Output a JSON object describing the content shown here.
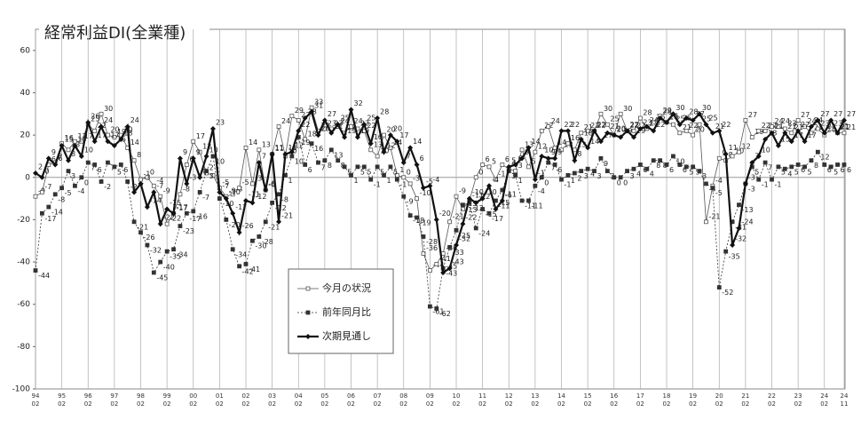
{
  "chart_data": {
    "type": "line",
    "title": "経常利益DI(全業種)",
    "categories": [
      "94\n02",
      null,
      null,
      null,
      "95\n02",
      null,
      null,
      null,
      "96\n02",
      null,
      null,
      null,
      "97\n02",
      null,
      null,
      null,
      "98\n02",
      null,
      null,
      null,
      "99\n02",
      null,
      null,
      null,
      "00\n02",
      null,
      null,
      null,
      "01\n02",
      null,
      null,
      null,
      "02\n02",
      null,
      null,
      null,
      "03\n02",
      null,
      null,
      null,
      "04\n02",
      null,
      null,
      null,
      "05\n02",
      null,
      null,
      null,
      "06\n02",
      null,
      null,
      null,
      "07\n02",
      null,
      null,
      null,
      "08\n02",
      null,
      null,
      null,
      "09\n02",
      null,
      null,
      null,
      "10\n02",
      null,
      null,
      null,
      "11\n02",
      null,
      null,
      null,
      "12\n02",
      null,
      null,
      null,
      "13\n02",
      null,
      null,
      null,
      "14\n02",
      null,
      null,
      null,
      "15\n02",
      null,
      null,
      null,
      "16\n02",
      null,
      null,
      null,
      "17\n02",
      null,
      null,
      null,
      "18\n02",
      null,
      null,
      null,
      "19\n02",
      null,
      null,
      null,
      "20\n02",
      null,
      null,
      null,
      "21\n02",
      null,
      null,
      null,
      "22\n02",
      null,
      null,
      null,
      "23\n02",
      null,
      null,
      null,
      "24\n02",
      null,
      null,
      "24\n11"
    ],
    "series": [
      {
        "name": "今月の状況",
        "color": "#555555",
        "marker": "open-square",
        "values": [
          -9,
          -7,
          6,
          7,
          16,
          13,
          17,
          17,
          25,
          22,
          30,
          20,
          19,
          20,
          14,
          8,
          -1,
          0,
          -4,
          -9,
          -22,
          -17,
          -8,
          6,
          17,
          12,
          2,
          1,
          -5,
          -9,
          -8,
          -5,
          14,
          -3,
          13,
          -6,
          11,
          24,
          10,
          29,
          27,
          18,
          33,
          22,
          23,
          23,
          24,
          21,
          24,
          23,
          22,
          13,
          10,
          20,
          14,
          1,
          0,
          -3,
          -10,
          -36,
          -44,
          -41,
          -36,
          -21,
          -9,
          -15,
          -11,
          0,
          6,
          5,
          -1,
          6,
          4,
          3,
          13,
          5,
          12,
          22,
          24,
          14,
          13,
          16,
          13,
          21,
          22,
          22,
          30,
          25,
          20,
          30,
          22,
          22,
          28,
          23,
          26,
          29,
          26,
          25,
          21,
          22,
          20,
          25,
          -21,
          -4,
          9,
          8,
          10,
          12,
          27,
          19,
          22,
          22,
          24,
          24,
          23,
          21,
          27,
          24,
          21,
          23,
          20,
          23,
          21,
          21
        ]
      },
      {
        "name": "前年同月比",
        "color": "#333333",
        "marker": "filled-square",
        "values": [
          -44,
          -17,
          -14,
          -8,
          -5,
          3,
          -4,
          0,
          7,
          6,
          -2,
          7,
          5,
          6,
          -2,
          -21,
          -26,
          -32,
          -45,
          -40,
          -35,
          -34,
          -23,
          -17,
          -16,
          -7,
          3,
          10,
          -10,
          -20,
          -34,
          -42,
          -41,
          -30,
          -28,
          -21,
          -12,
          -8,
          1,
          10,
          19,
          6,
          16,
          7,
          8,
          13,
          8,
          5,
          1,
          5,
          5,
          -1,
          5,
          1,
          5,
          -1,
          -9,
          -18,
          -19,
          -28,
          -61,
          -62,
          -43,
          -33,
          -25,
          -13,
          -12,
          -24,
          -15,
          -17,
          -11,
          -6,
          3,
          1,
          -11,
          -11,
          -4,
          0,
          7,
          6,
          -1,
          1,
          2,
          3,
          4,
          3,
          9,
          3,
          0,
          0,
          3,
          4,
          6,
          4,
          8,
          8,
          6,
          10,
          6,
          5,
          5,
          3,
          -3,
          -5,
          -52,
          -35,
          -21,
          -13,
          -3,
          5,
          -1,
          7,
          -1,
          5,
          4,
          5,
          6,
          5,
          8,
          12,
          6,
          5,
          6,
          6
        ]
      },
      {
        "name": "次期見通し",
        "color": "#111111",
        "marker": "diamond",
        "values": [
          2,
          0,
          9,
          6,
          15,
          8,
          15,
          10,
          26,
          17,
          24,
          17,
          15,
          18,
          24,
          -7,
          -3,
          -14,
          -7,
          -22,
          -15,
          -17,
          9,
          -3,
          9,
          0,
          10,
          23,
          -7,
          -10,
          -17,
          -26,
          -11,
          -12,
          7,
          -6,
          11,
          -21,
          11,
          12,
          22,
          28,
          31,
          20,
          27,
          21,
          25,
          19,
          32,
          19,
          25,
          16,
          28,
          12,
          20,
          17,
          7,
          14,
          6,
          -5,
          -4,
          -20,
          -45,
          -43,
          -32,
          -22,
          -10,
          -12,
          -10,
          -4,
          -15,
          -11,
          5,
          6,
          9,
          14,
          -1,
          10,
          9,
          9,
          22,
          22,
          8,
          18,
          14,
          22,
          17,
          21,
          20,
          19,
          22,
          19,
          23,
          24,
          22,
          28,
          26,
          30,
          25,
          28,
          27,
          30,
          25,
          21,
          22,
          11,
          -32,
          -24,
          -3,
          7,
          10,
          18,
          21,
          15,
          21,
          17,
          22,
          17,
          24,
          27,
          21,
          27,
          21,
          27
        ]
      }
    ],
    "ylim": [
      -100,
      70
    ],
    "yticks": [
      -100,
      -80,
      -60,
      -40,
      -20,
      0,
      20,
      40,
      60
    ]
  }
}
